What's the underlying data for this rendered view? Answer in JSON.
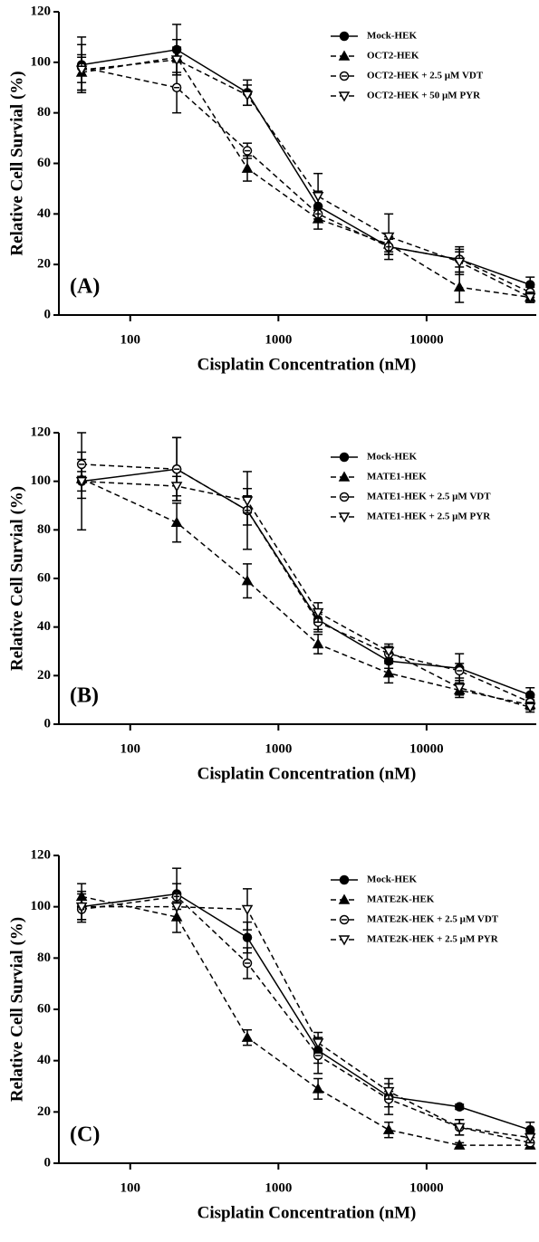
{
  "chart_data": [
    {
      "type": "line",
      "panel_label": "(A)",
      "x_label": "Cisplatin Concentration (nM)",
      "y_label": "Relative Cell Survial (%)",
      "log_x": true,
      "xlim": [
        33,
        55000
      ],
      "ylim": [
        0,
        120
      ],
      "xticks": [
        100,
        1000,
        10000
      ],
      "yticks": [
        0,
        20,
        40,
        60,
        80,
        100,
        120
      ],
      "x": [
        47,
        206,
        617,
        1852,
        5556,
        16667,
        50000
      ],
      "series": [
        {
          "name": "Mock-HEK",
          "color": "#000000",
          "marker": "circle",
          "dash": false,
          "values": [
            99,
            105,
            88,
            43,
            27,
            22,
            12
          ],
          "errors": [
            11,
            10,
            5,
            6,
            3,
            5,
            3
          ]
        },
        {
          "name": "OCT2-HEK",
          "color": "#000000",
          "marker": "triangle",
          "dash": true,
          "values": [
            96,
            102,
            58,
            38,
            28,
            11,
            7
          ],
          "errors": [
            7,
            7,
            5,
            4,
            3,
            6,
            2
          ]
        },
        {
          "name": "OCT2-HEK + 2.5 µM VDT",
          "color": "#000000",
          "marker": "open-circle",
          "dash": true,
          "values": [
            98,
            90,
            65,
            40,
            27,
            22,
            9
          ],
          "errors": [
            9,
            10,
            3,
            3,
            3,
            3,
            2
          ]
        },
        {
          "name": "OCT2-HEK + 50 µM PYR",
          "color": "#000000",
          "marker": "open-down-triangle",
          "dash": true,
          "values": [
            97,
            101,
            87,
            47,
            31,
            21,
            7
          ],
          "errors": [
            5,
            5,
            4,
            9,
            9,
            5,
            2
          ]
        }
      ]
    },
    {
      "type": "line",
      "panel_label": "(B)",
      "x_label": "Cisplatin Concentration (nM)",
      "y_label": "Relative Cell Survial (%)",
      "log_x": true,
      "xlim": [
        33,
        55000
      ],
      "ylim": [
        0,
        120
      ],
      "xticks": [
        100,
        1000,
        10000
      ],
      "yticks": [
        0,
        20,
        40,
        60,
        80,
        100,
        120
      ],
      "x": [
        47,
        206,
        617,
        1852,
        5556,
        16667,
        50000
      ],
      "series": [
        {
          "name": "Mock-HEK",
          "color": "#000000",
          "marker": "circle",
          "dash": false,
          "values": [
            100,
            105,
            88,
            43,
            26,
            23,
            12
          ],
          "errors": [
            20,
            13,
            6,
            4,
            3,
            6,
            3
          ]
        },
        {
          "name": "MATE1-HEK",
          "color": "#000000",
          "marker": "triangle",
          "dash": true,
          "values": [
            101,
            83,
            59,
            33,
            21,
            14,
            8
          ],
          "errors": [
            8,
            8,
            7,
            4,
            4,
            3,
            2
          ]
        },
        {
          "name": "MATE1-HEK + 2.5 µM VDT",
          "color": "#000000",
          "marker": "open-circle",
          "dash": true,
          "values": [
            107,
            105,
            88,
            42,
            29,
            22,
            9
          ],
          "errors": [
            5,
            13,
            16,
            4,
            3,
            3,
            2
          ]
        },
        {
          "name": "MATE1-HEK + 2.5 µM PYR",
          "color": "#000000",
          "marker": "open-down-triangle",
          "dash": true,
          "values": [
            100,
            98,
            92,
            46,
            30,
            15,
            7
          ],
          "errors": [
            4,
            4,
            5,
            4,
            3,
            3,
            2
          ]
        }
      ]
    },
    {
      "type": "line",
      "panel_label": "(C)",
      "x_label": "Cisplatin Concentration (nM)",
      "y_label": "Relative Cell Survial (%)",
      "log_x": true,
      "xlim": [
        33,
        55000
      ],
      "ylim": [
        0,
        120
      ],
      "xticks": [
        100,
        1000,
        10000
      ],
      "yticks": [
        0,
        20,
        40,
        60,
        80,
        100,
        120
      ],
      "x": [
        47,
        206,
        617,
        1852,
        5556,
        16667,
        50000
      ],
      "series": [
        {
          "name": "Mock-HEK",
          "color": "#000000",
          "marker": "circle",
          "dash": false,
          "values": [
            100,
            105,
            88,
            44,
            26,
            22,
            13
          ],
          "errors": [
            5,
            10,
            6,
            5,
            7,
            1,
            3
          ]
        },
        {
          "name": "MATE2K-HEK",
          "color": "#000000",
          "marker": "triangle",
          "dash": true,
          "values": [
            104,
            96,
            49,
            29,
            13,
            7,
            7
          ],
          "errors": [
            5,
            6,
            3,
            4,
            3,
            1,
            1
          ]
        },
        {
          "name": "MATE2K-HEK + 2.5 µM VDT",
          "color": "#000000",
          "marker": "open-circle",
          "dash": true,
          "values": [
            99,
            104,
            78,
            42,
            25,
            14,
            8
          ],
          "errors": [
            4,
            5,
            6,
            7,
            3,
            3,
            2
          ]
        },
        {
          "name": "MATE2K-HEK + 2.5 µM PYR",
          "color": "#000000",
          "marker": "open-down-triangle",
          "dash": true,
          "values": [
            100,
            100,
            99,
            47,
            28,
            14,
            10
          ],
          "errors": [
            6,
            5,
            8,
            4,
            3,
            3,
            2
          ]
        }
      ]
    }
  ]
}
